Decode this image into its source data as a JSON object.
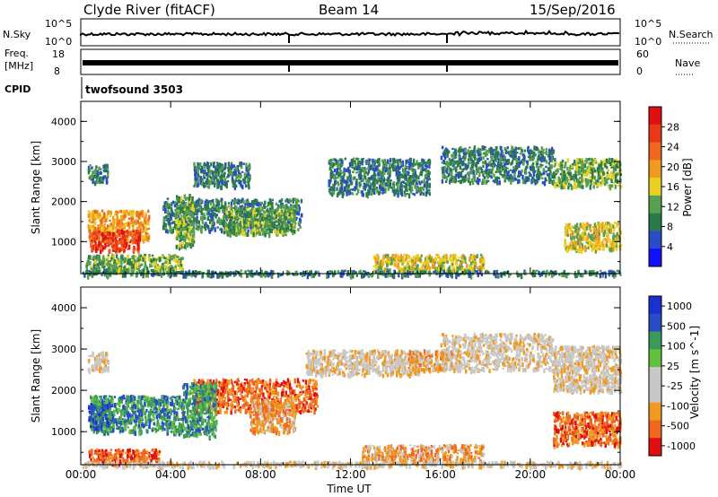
{
  "header": {
    "station": "Clyde River (fitACF)",
    "beam": "Beam 14",
    "date": "15/Sep/2016"
  },
  "noise_panel": {
    "left_label": "N.Sky",
    "left_ticks": [
      "10^5",
      "10^0"
    ],
    "right_label": "N.Search",
    "right_ticks": [
      "10^5",
      "10^0"
    ]
  },
  "freq_panel": {
    "left_label_1": "Freq.",
    "left_label_2": "[MHz]",
    "left_ticks": [
      "18",
      "8"
    ],
    "right_label": "Nave",
    "right_ticks": [
      "60",
      "0"
    ]
  },
  "cpid_panel": {
    "label": "CPID",
    "program": "twofsound 3503"
  },
  "colors": {
    "scale_power": [
      "#1010ff",
      "#2a4cc6",
      "#2a7a4a",
      "#58a050",
      "#e8d020",
      "#f09a20",
      "#f06820",
      "#e83818",
      "#e01010"
    ],
    "scale_velocity": [
      "#e01010",
      "#f06820",
      "#f09a20",
      "#c8c8c8",
      "#c8c8c8",
      "#60c040",
      "#3a9a5a",
      "#2a4cc6",
      "#1a30d0"
    ]
  },
  "chart_data": [
    {
      "type": "heatmap",
      "name": "power",
      "ylabel": "Slant Range [km]",
      "xlabel": "Time UT",
      "yticks": [
        "1000",
        "2000",
        "3000",
        "4000"
      ],
      "ylim": [
        200,
        4500
      ],
      "xticks": [
        "00:00",
        "04:00",
        "08:00",
        "12:00",
        "16:00",
        "20:00",
        "00:00"
      ],
      "xlim_hours": [
        0,
        24
      ],
      "colorbar_label": "Power [dB]",
      "colorbar_ticks": [
        "4",
        "8",
        "12",
        "16",
        "20",
        "24",
        "28"
      ],
      "colorbar_range": [
        0,
        32
      ],
      "regions": [
        {
          "t0": 0.3,
          "t1": 1.2,
          "r0": 2500,
          "r1": 2950,
          "level": 2
        },
        {
          "t0": 0.3,
          "t1": 3.0,
          "r0": 1000,
          "r1": 1800,
          "level": 5
        },
        {
          "t0": 0.4,
          "t1": 2.6,
          "r0": 800,
          "r1": 1300,
          "level": 7
        },
        {
          "t0": 0.2,
          "t1": 4.5,
          "r0": 250,
          "r1": 700,
          "level": 3
        },
        {
          "t0": 3.6,
          "t1": 9.8,
          "r0": 1300,
          "r1": 2100,
          "level": 2
        },
        {
          "t0": 4.2,
          "t1": 5.0,
          "r0": 900,
          "r1": 2200,
          "level": 3
        },
        {
          "t0": 5.0,
          "t1": 7.5,
          "r0": 2400,
          "r1": 3000,
          "level": 2
        },
        {
          "t0": 6.3,
          "t1": 9.5,
          "r0": 1200,
          "r1": 1900,
          "level": 3
        },
        {
          "t0": 11.0,
          "t1": 15.5,
          "r0": 2200,
          "r1": 3100,
          "level": 2
        },
        {
          "t0": 16.0,
          "t1": 21.0,
          "r0": 2500,
          "r1": 3400,
          "level": 2
        },
        {
          "t0": 21.0,
          "t1": 24.0,
          "r0": 2400,
          "r1": 3100,
          "level": 3
        },
        {
          "t0": 13.0,
          "t1": 17.9,
          "r0": 300,
          "r1": 700,
          "level": 4
        },
        {
          "t0": 21.5,
          "t1": 24.0,
          "r0": 800,
          "r1": 1500,
          "level": 4
        },
        {
          "t0": 0.0,
          "t1": 24.0,
          "r0": 180,
          "r1": 300,
          "level": 2
        }
      ]
    },
    {
      "type": "heatmap",
      "name": "velocity",
      "ylabel": "Slant Range [km]",
      "xlabel": "Time UT",
      "yticks": [
        "1000",
        "2000",
        "3000",
        "4000"
      ],
      "ylim": [
        200,
        4500
      ],
      "xticks": [
        "00:00",
        "04:00",
        "08:00",
        "12:00",
        "16:00",
        "20:00",
        "00:00"
      ],
      "xlim_hours": [
        0,
        24
      ],
      "colorbar_label": "Velocity [m s^-1]",
      "colorbar_ticks": [
        "1000",
        "500",
        "100",
        "25",
        "-25",
        "-100",
        "-500",
        "-1000"
      ],
      "regions": [
        {
          "t0": 0.3,
          "t1": 1.2,
          "r0": 2500,
          "r1": 2950,
          "level": 3
        },
        {
          "t0": 0.4,
          "t1": 4.5,
          "r0": 1000,
          "r1": 1900,
          "level": 6
        },
        {
          "t0": 0.3,
          "t1": 1.3,
          "r0": 1100,
          "r1": 1700,
          "level": 7
        },
        {
          "t0": 0.3,
          "t1": 3.5,
          "r0": 250,
          "r1": 600,
          "level": 1
        },
        {
          "t0": 5.0,
          "t1": 10.5,
          "r0": 1500,
          "r1": 2300,
          "level": 1
        },
        {
          "t0": 7.5,
          "t1": 9.5,
          "r0": 1000,
          "r1": 1800,
          "level": 2
        },
        {
          "t0": 4.5,
          "t1": 6.0,
          "r0": 900,
          "r1": 2200,
          "level": 6
        },
        {
          "t0": 10.0,
          "t1": 15.0,
          "r0": 2400,
          "r1": 3000,
          "level": 3
        },
        {
          "t0": 14.5,
          "t1": 16.5,
          "r0": 2500,
          "r1": 3000,
          "level": 2
        },
        {
          "t0": 16.0,
          "t1": 21.0,
          "r0": 2500,
          "r1": 3400,
          "level": 3
        },
        {
          "t0": 21.0,
          "t1": 24.0,
          "r0": 2000,
          "r1": 3100,
          "level": 3
        },
        {
          "t0": 12.5,
          "t1": 17.9,
          "r0": 300,
          "r1": 700,
          "level": 2
        },
        {
          "t0": 21.0,
          "t1": 24.0,
          "r0": 700,
          "r1": 1500,
          "level": 1
        },
        {
          "t0": 0.0,
          "t1": 24.0,
          "r0": 180,
          "r1": 300,
          "level": 3
        }
      ]
    }
  ]
}
